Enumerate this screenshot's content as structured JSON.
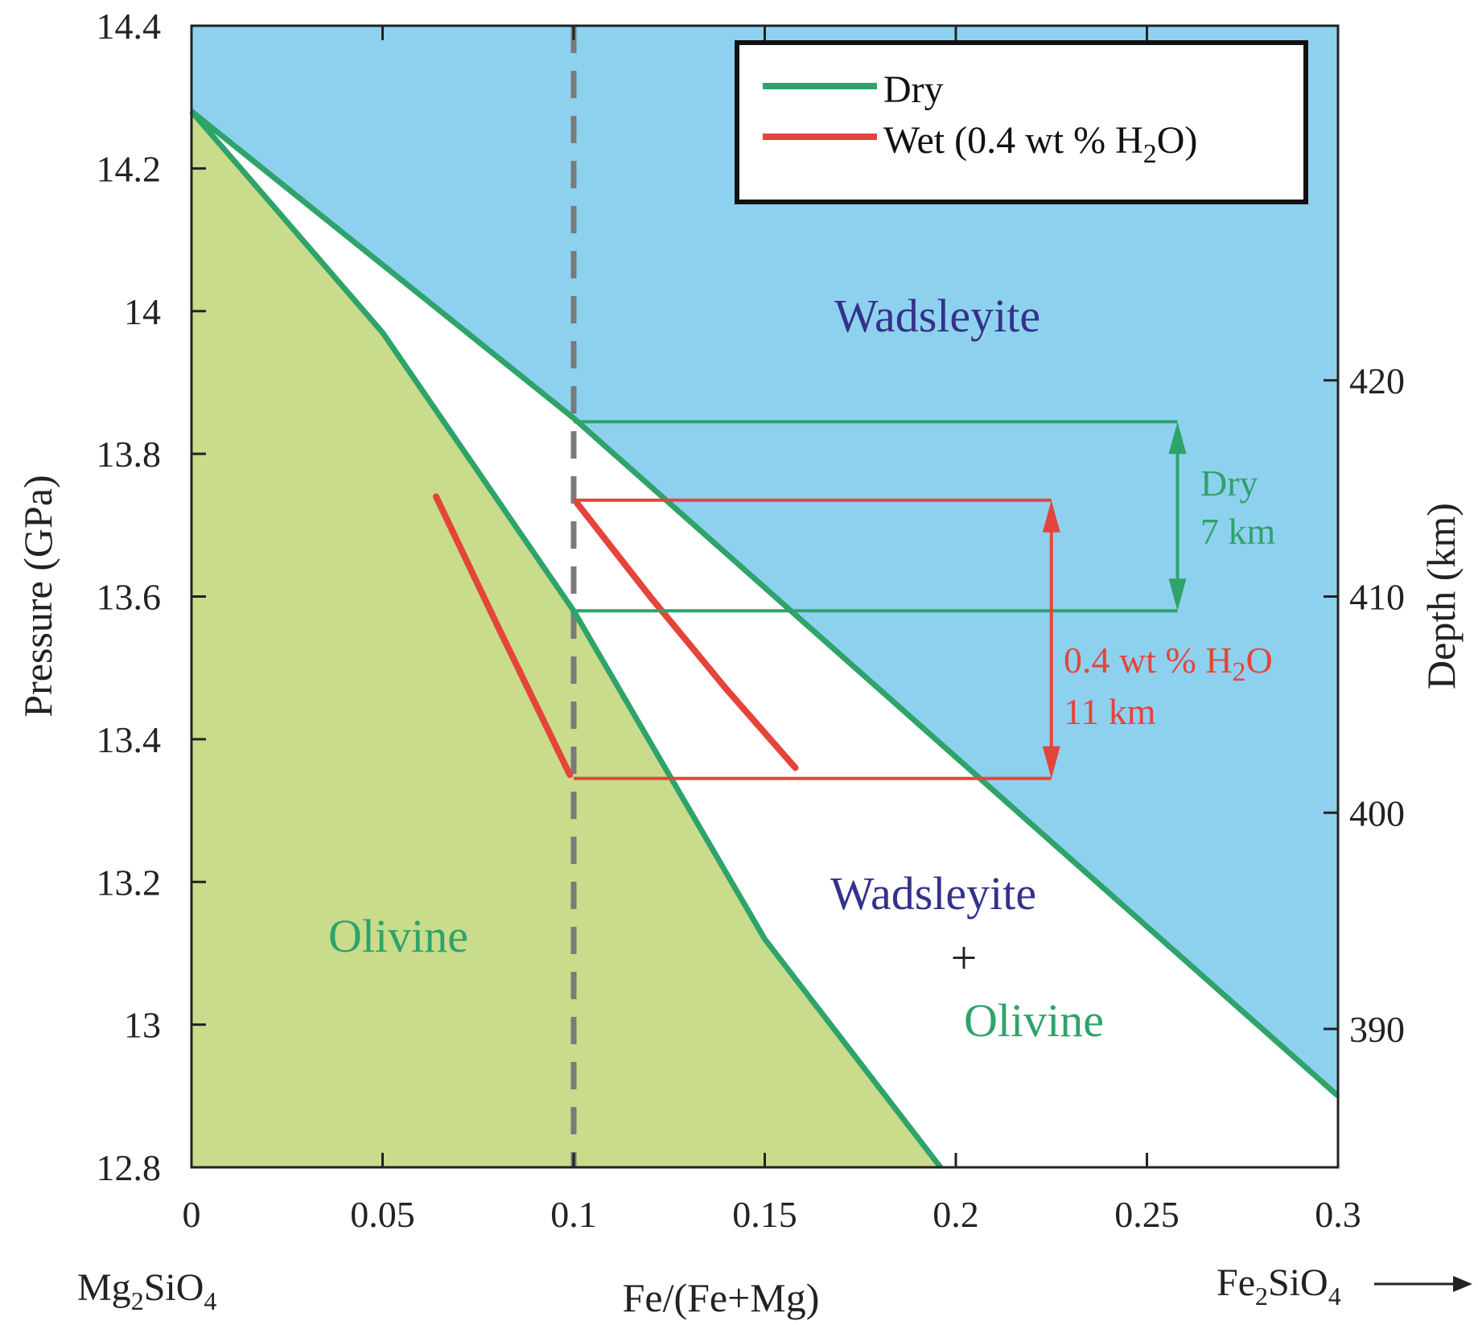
{
  "chart_data": {
    "type": "line",
    "title": "",
    "xlabel": "Fe/(Fe+Mg)",
    "ylabel": "Pressure (GPa)",
    "y2label": "Depth (km)",
    "xlim": [
      0,
      0.3
    ],
    "ylim": [
      12.8,
      14.4
    ],
    "y2lim": [
      383.6,
      436.4
    ],
    "x_ticks": [
      0,
      0.05,
      0.1,
      0.15,
      0.2,
      0.25,
      0.3
    ],
    "x_tick_labels": [
      "0",
      "0.05",
      "0.1",
      "0.15",
      "0.2",
      "0.25",
      "0.3"
    ],
    "y_ticks": [
      12.8,
      13,
      13.2,
      13.4,
      13.6,
      13.8,
      14,
      14.2,
      14.4
    ],
    "y_tick_labels": [
      "12.8",
      "13",
      "13.2",
      "13.4",
      "13.6",
      "13.8",
      "14",
      "14.2",
      "14.4"
    ],
    "y2_ticks": [
      390,
      400,
      410,
      420
    ],
    "y2_tick_labels": [
      "390",
      "400",
      "410",
      "420"
    ],
    "endmember_left": {
      "base": "Mg",
      "sub1": "2",
      "mid": "SiO",
      "sub2": "4"
    },
    "endmember_right": {
      "base": "Fe",
      "sub1": "2",
      "mid": "SiO",
      "sub2": "4"
    },
    "colors": {
      "wadsleyite_field": "#8ed1ef",
      "olivine_field": "#c8dc8c",
      "two_phase_field": "#ffffff",
      "dry": "#2ea36a",
      "wet": "#e5443a",
      "composition_line": "#7a7a7a",
      "wadsleyite_text": "#34328a",
      "olivine_text": "#2ea36a"
    },
    "series": [
      {
        "name": "Dry",
        "key": "dry_wad",
        "x": [
          0,
          0.1,
          0.3
        ],
        "y": [
          14.28,
          13.85,
          12.9
        ]
      },
      {
        "name": "Dry",
        "key": "dry_ol",
        "x": [
          0,
          0.05,
          0.1,
          0.15,
          0.196
        ],
        "y": [
          14.28,
          13.97,
          13.58,
          13.12,
          12.8
        ]
      },
      {
        "name": "Wet (0.4 wt % H2O)",
        "key": "wet_ol",
        "x": [
          0.064,
          0.08,
          0.099
        ],
        "y": [
          13.74,
          13.56,
          13.35
        ]
      },
      {
        "name": "Wet (0.4 wt % H2O)",
        "key": "wet_wad",
        "x": [
          0.101,
          0.12,
          0.14,
          0.158
        ],
        "y": [
          13.73,
          13.6,
          13.47,
          13.36
        ]
      }
    ],
    "composition_line_x": 0.1,
    "dry_interval": {
      "y_top": 13.845,
      "y_bottom": 13.58,
      "x_end": 0.258,
      "label_line1": "Dry",
      "label_line2": "7 km"
    },
    "wet_interval": {
      "y_top": 13.735,
      "y_bottom": 13.345,
      "x_end": 0.225,
      "label_line1_a": "0.4 wt % H",
      "label_line1_sub": "2",
      "label_line1_b": "O",
      "label_line2": "11 km"
    },
    "legend": {
      "position": "top-right",
      "dry_label": "Dry",
      "wet_label_a": "Wet (0.4 wt % H",
      "wet_label_sub": "2",
      "wet_label_b": "O)"
    },
    "regions": {
      "wadsleyite": "Wadsleyite",
      "olivine": "Olivine",
      "mix_top": "Wadsleyite",
      "mix_plus": "+",
      "mix_bottom": "Olivine"
    }
  }
}
